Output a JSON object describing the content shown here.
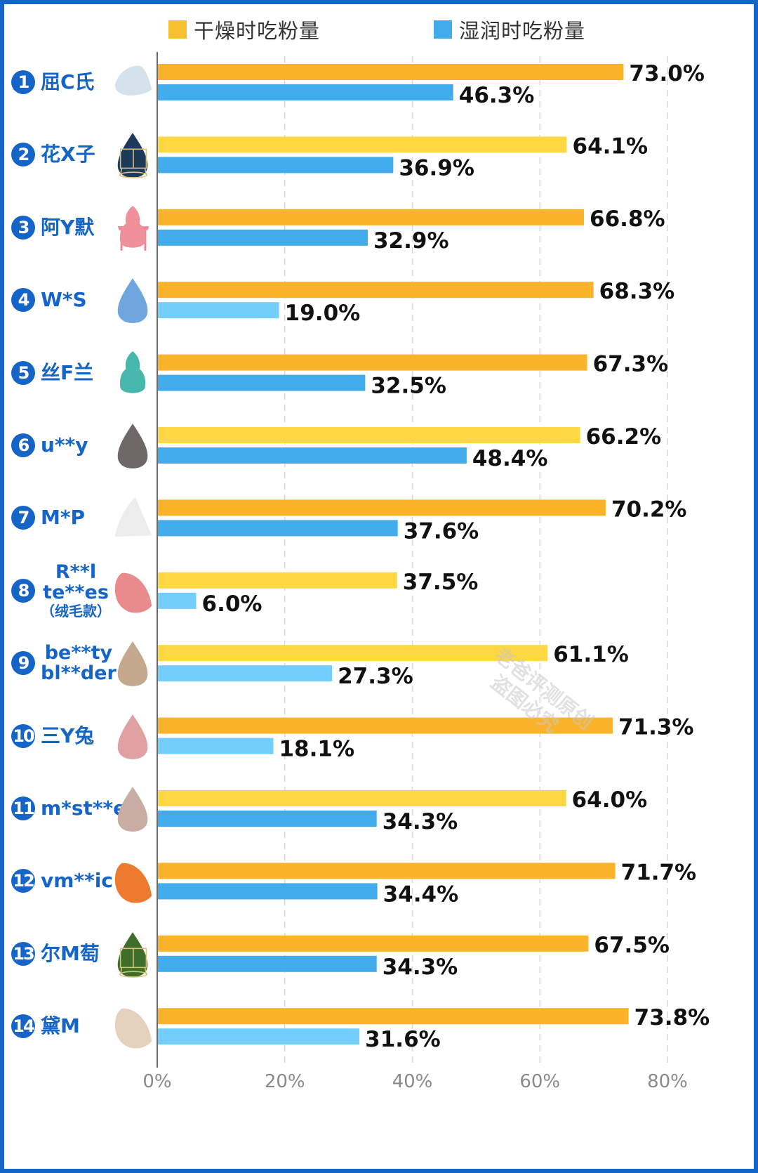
{
  "legend": {
    "dry_label": "干燥时吃粉量",
    "wet_label": "湿润时吃粉量"
  },
  "colors": {
    "frame": "#1565C8",
    "label_blue": "#1565C8",
    "dry_orange": "#FBB42A",
    "dry_yellow": "#FDD843",
    "wet_blue": "#41ABEB",
    "wet_light": "#74CEFB"
  },
  "watermark": {
    "line1": "老爸评测原创",
    "line2": "盗图必究"
  },
  "products": [
    {
      "num": "1",
      "name": [
        "屈C氏"
      ],
      "icon": "sponge-pale-blue-teardrop-icon",
      "icon_color": "#D3E2EB"
    },
    {
      "num": "2",
      "name": [
        "花X子"
      ],
      "icon": "sponge-navy-with-gold-stand-icon",
      "icon_color": "#1E3A5A"
    },
    {
      "num": "3",
      "name": [
        "阿Y默"
      ],
      "icon": "sponge-pink-gourd-with-stand-icon",
      "icon_color": "#F0909A"
    },
    {
      "num": "4",
      "name": [
        "W*S"
      ],
      "icon": "sponge-blue-teardrop-icon",
      "icon_color": "#6FA6DE"
    },
    {
      "num": "5",
      "name": [
        "丝F兰"
      ],
      "icon": "sponge-teal-gourd-icon",
      "icon_color": "#45B7AD"
    },
    {
      "num": "6",
      "name": [
        "u**y"
      ],
      "icon": "sponge-gray-teardrop-icon",
      "icon_color": "#6E6868"
    },
    {
      "num": "7",
      "name": [
        "M*P"
      ],
      "icon": "sponge-white-wedge-icon",
      "icon_color": "#EDEDED"
    },
    {
      "num": "8",
      "name": [
        "R**l",
        "te**es"
      ],
      "sub": "（绒毛款）",
      "icon": "sponge-pink-cut-icon",
      "icon_color": "#E98A8C"
    },
    {
      "num": "9",
      "name": [
        "be**ty",
        "bl**der"
      ],
      "icon": "sponge-beige-teardrop-icon",
      "icon_color": "#C4A98E"
    },
    {
      "num": "10",
      "name": [
        "三Y兔"
      ],
      "icon": "sponge-rose-teardrop-icon",
      "icon_color": "#E0A1A2"
    },
    {
      "num": "11",
      "name": [
        "m*st**e"
      ],
      "icon": "sponge-taupe-teardrop-icon",
      "icon_color": "#C9ACA4"
    },
    {
      "num": "12",
      "name": [
        "vm**ic"
      ],
      "icon": "sponge-orange-cut-icon",
      "icon_color": "#EE7A30"
    },
    {
      "num": "13",
      "name": [
        "尔M萄"
      ],
      "icon": "sponge-green-with-gold-stand-icon",
      "icon_color": "#3F6E2A"
    },
    {
      "num": "14",
      "name": [
        "黛M"
      ],
      "icon": "sponge-cream-cut-icon",
      "icon_color": "#E5D2BE"
    }
  ],
  "chart_data": {
    "type": "bar",
    "orientation": "horizontal",
    "title": "",
    "xlabel": "",
    "ylabel": "",
    "xlim": [
      0,
      80
    ],
    "x_ticks": [
      "0%",
      "20%",
      "40%",
      "60%",
      "80%"
    ],
    "x_tick_values": [
      0,
      20,
      40,
      60,
      80
    ],
    "grid": "vertical dashed",
    "legend_position": "top",
    "categories": [
      "屈C氏",
      "花X子",
      "阿Y默",
      "W*S",
      "丝F兰",
      "u**y",
      "M*P",
      "R**l te**es（绒毛款）",
      "be**ty bl**der",
      "三Y兔",
      "m*st**e",
      "vm**ic",
      "尔M萄",
      "黛M"
    ],
    "series": [
      {
        "name": "干燥时吃粉量",
        "values": [
          73.0,
          64.1,
          66.8,
          68.3,
          67.3,
          66.2,
          70.2,
          37.5,
          61.1,
          71.3,
          64.0,
          71.7,
          67.5,
          73.8
        ],
        "labels": [
          "73.0%",
          "64.1%",
          "66.8%",
          "68.3%",
          "67.3%",
          "66.2%",
          "70.2%",
          "37.5%",
          "61.1%",
          "71.3%",
          "64.0%",
          "71.7%",
          "67.5%",
          "73.8%"
        ],
        "bar_colors": [
          "#FBB42A",
          "#FDD843",
          "#FBB42A",
          "#FBB42A",
          "#FBB42A",
          "#FDD843",
          "#FBB42A",
          "#FDD843",
          "#FDD843",
          "#FBB42A",
          "#FDD843",
          "#FBB42A",
          "#FBB42A",
          "#FBB42A"
        ]
      },
      {
        "name": "湿润时吃粉量",
        "values": [
          46.3,
          36.9,
          32.9,
          19.0,
          32.5,
          48.4,
          37.6,
          6.0,
          27.3,
          18.1,
          34.3,
          34.4,
          34.3,
          31.6
        ],
        "labels": [
          "46.3%",
          "36.9%",
          "32.9%",
          "19.0%",
          "32.5%",
          "48.4%",
          "37.6%",
          "6.0%",
          "27.3%",
          "18.1%",
          "34.3%",
          "34.4%",
          "34.3%",
          "31.6%"
        ],
        "bar_colors": [
          "#41ABEB",
          "#41ABEB",
          "#41ABEB",
          "#74CEFB",
          "#41ABEB",
          "#41ABEB",
          "#41ABEB",
          "#74CEFB",
          "#74CEFB",
          "#74CEFB",
          "#41ABEB",
          "#41ABEB",
          "#41ABEB",
          "#74CEFB"
        ]
      }
    ]
  }
}
